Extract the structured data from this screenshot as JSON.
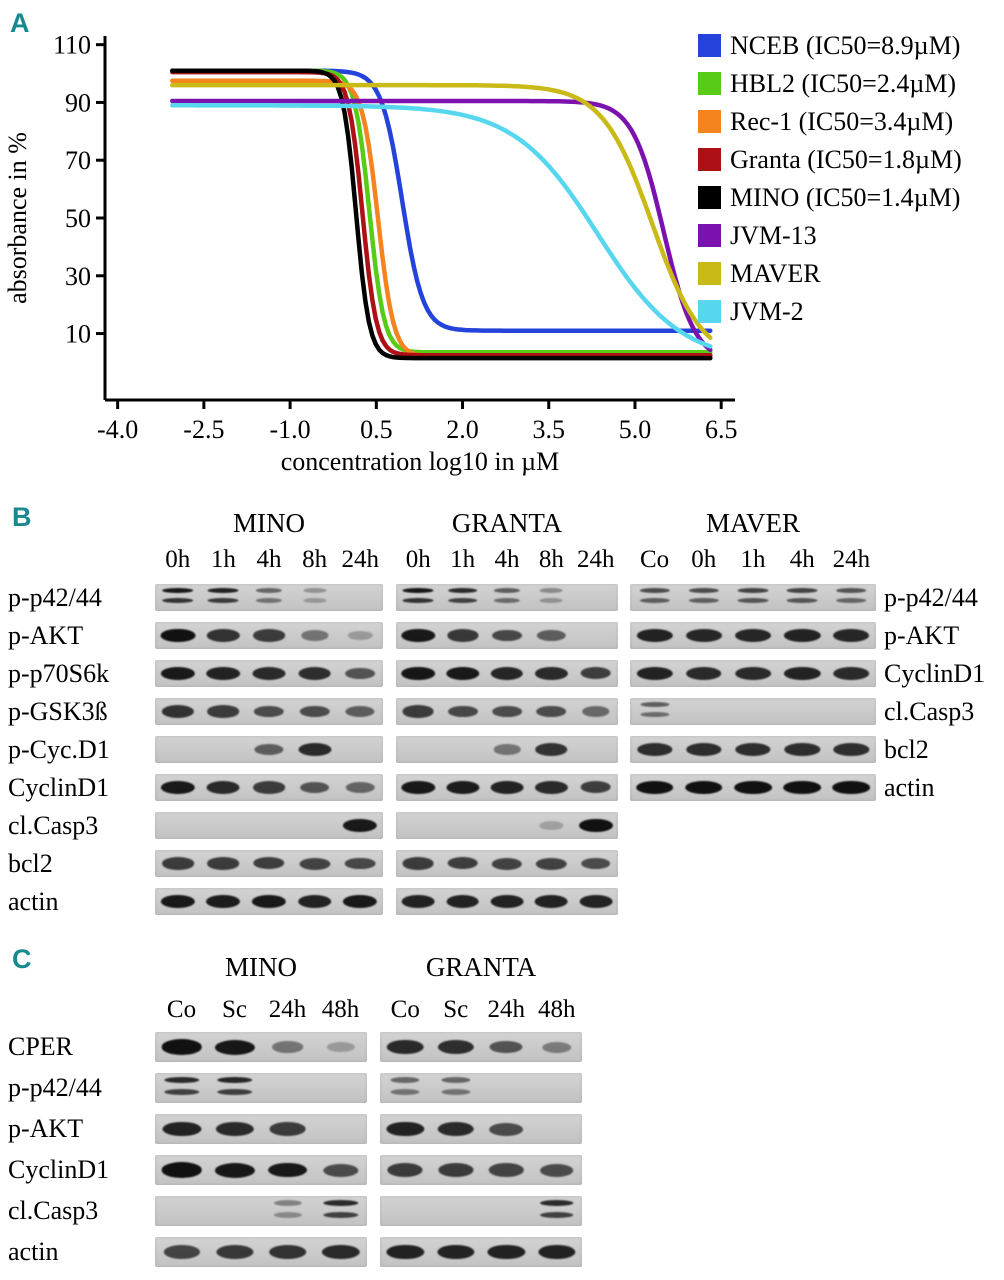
{
  "figure": {
    "panel_a_label": "A",
    "panel_b_label": "B",
    "panel_c_label": "C",
    "accent_teal": "#17898f"
  },
  "chart_data": {
    "type": "line",
    "title": "",
    "xlabel": "concentration log10 in µM",
    "ylabel": "absorbance in %",
    "xlim": [
      -4.22,
      6.74
    ],
    "ylim": [
      -13,
      113
    ],
    "x_ticks": [
      "-4.0",
      "-2.5",
      "-1.0",
      "0.5",
      "2.0",
      "3.5",
      "5.0",
      "6.5"
    ],
    "x_tick_values": [
      -4.0,
      -2.5,
      -1.0,
      0.5,
      2.0,
      3.5,
      5.0,
      6.5
    ],
    "y_ticks": [
      10,
      30,
      50,
      70,
      90,
      110
    ],
    "x_start": -3.05,
    "x_end": 6.32,
    "grid": false,
    "legend_position": "right",
    "series": [
      {
        "name": "NCEB",
        "legend": "NCEB (IC50=8.9µM)",
        "color": "#2443da",
        "top": 101,
        "bottom": 11,
        "logIC50": 0.95,
        "hill": 2.4
      },
      {
        "name": "HBL2",
        "legend": "HBL2 (IC50=2.4µM)",
        "color": "#57cb17",
        "top": 101,
        "bottom": 3.5,
        "logIC50": 0.38,
        "hill": 3.4
      },
      {
        "name": "Rec-1",
        "legend": "Rec-1 (IC50=3.4µM)",
        "color": "#f5831e",
        "top": 97.5,
        "bottom": 2,
        "logIC50": 0.53,
        "hill": 3.2
      },
      {
        "name": "Granta",
        "legend": "Granta (IC50=1.8µM)",
        "color": "#ad1015",
        "top": 100.5,
        "bottom": 2.5,
        "logIC50": 0.26,
        "hill": 3.6
      },
      {
        "name": "MINO",
        "legend": "MINO (IC50=1.4µM)",
        "color": "#000000",
        "top": 101,
        "bottom": 1.5,
        "logIC50": 0.15,
        "hill": 3.8
      },
      {
        "name": "JVM-13",
        "legend": "JVM-13",
        "color": "#7c12ad",
        "top": 90.5,
        "bottom": 0,
        "logIC50": 5.5,
        "hill": 1.6
      },
      {
        "name": "MAVER",
        "legend": "MAVER",
        "color": "#c9ba17",
        "top": 96,
        "bottom": 0,
        "logIC50": 5.3,
        "hill": 1.0
      },
      {
        "name": "JVM-2",
        "legend": "JVM-2",
        "color": "#57d7ef",
        "top": 89,
        "bottom": 0,
        "logIC50": 4.35,
        "hill": 0.6
      }
    ]
  },
  "panelB": {
    "left_labels": [
      "p-p42/44",
      "p-AKT",
      "p-p70S6k",
      "p-GSK3ß",
      "p-Cyc.D1",
      "CyclinD1",
      "cl.Casp3",
      "bcl2",
      "actin"
    ],
    "right_labels": [
      "p-p42/44",
      "p-AKT",
      "CyclinD1",
      "cl.Casp3",
      "bcl2",
      "actin"
    ],
    "groups": [
      {
        "name": "MINO",
        "lanes": [
          "0h",
          "1h",
          "4h",
          "8h",
          "24h"
        ],
        "rows": [
          {
            "double": true,
            "bands": [
              0.9,
              0.85,
              0.45,
              0.18,
              0
            ]
          },
          {
            "double": false,
            "bands": [
              0.95,
              0.75,
              0.7,
              0.35,
              0.12
            ]
          },
          {
            "double": false,
            "bands": [
              0.9,
              0.85,
              0.8,
              0.78,
              0.55
            ]
          },
          {
            "double": false,
            "bands": [
              0.75,
              0.7,
              0.6,
              0.6,
              0.5
            ]
          },
          {
            "double": false,
            "bands": [
              0,
              0,
              0.5,
              0.8,
              0
            ]
          },
          {
            "double": false,
            "bands": [
              0.9,
              0.8,
              0.7,
              0.55,
              0.45
            ]
          },
          {
            "double": false,
            "bands": [
              0,
              0,
              0,
              0,
              0.9
            ]
          },
          {
            "double": false,
            "bands": [
              0.7,
              0.7,
              0.68,
              0.65,
              0.62
            ]
          },
          {
            "double": false,
            "bands": [
              0.9,
              0.88,
              0.9,
              0.85,
              0.9
            ]
          }
        ]
      },
      {
        "name": "GRANTA",
        "lanes": [
          "0h",
          "1h",
          "4h",
          "8h",
          "24h"
        ],
        "rows": [
          {
            "double": true,
            "bands": [
              0.92,
              0.8,
              0.5,
              0.22,
              0
            ]
          },
          {
            "double": false,
            "bands": [
              0.9,
              0.72,
              0.62,
              0.5,
              0
            ]
          },
          {
            "double": false,
            "bands": [
              0.92,
              0.9,
              0.82,
              0.8,
              0.68
            ]
          },
          {
            "double": false,
            "bands": [
              0.7,
              0.62,
              0.6,
              0.6,
              0.42
            ]
          },
          {
            "double": false,
            "bands": [
              0,
              0,
              0.35,
              0.75,
              0
            ]
          },
          {
            "double": false,
            "bands": [
              0.9,
              0.88,
              0.85,
              0.8,
              0.68
            ]
          },
          {
            "double": false,
            "bands": [
              0,
              0,
              0,
              0.08,
              0.95
            ]
          },
          {
            "double": false,
            "bands": [
              0.7,
              0.68,
              0.66,
              0.66,
              0.6
            ]
          },
          {
            "double": false,
            "bands": [
              0.85,
              0.85,
              0.85,
              0.85,
              0.85
            ]
          }
        ]
      },
      {
        "name": "MAVER",
        "lanes": [
          "Co",
          "0h",
          "1h",
          "4h",
          "24h"
        ],
        "rows": [
          {
            "double": true,
            "bands": [
              0.6,
              0.6,
              0.65,
              0.65,
              0.55
            ]
          },
          {
            "double": false,
            "bands": [
              0.85,
              0.82,
              0.82,
              0.85,
              0.82
            ]
          },
          {
            "double": false,
            "bands": [
              0.85,
              0.8,
              0.8,
              0.85,
              0.8
            ]
          },
          {
            "double": true,
            "bands": [
              0.5,
              0,
              0,
              0,
              0
            ]
          },
          {
            "double": false,
            "bands": [
              0.78,
              0.78,
              0.78,
              0.78,
              0.78
            ]
          },
          {
            "double": false,
            "bands": [
              0.95,
              0.95,
              0.95,
              0.95,
              0.95
            ]
          }
        ]
      }
    ]
  },
  "panelC": {
    "left_labels": [
      "CPER",
      "p-p42/44",
      "p-AKT",
      "CyclinD1",
      "cl.Casp3",
      "actin"
    ],
    "groups": [
      {
        "name": "MINO",
        "lanes": [
          "Co",
          "Sc",
          "24h",
          "48h"
        ],
        "rows": [
          {
            "double": false,
            "bands": [
              0.95,
              0.92,
              0.35,
              0.12
            ]
          },
          {
            "double": true,
            "bands": [
              0.8,
              0.82,
              0,
              0
            ]
          },
          {
            "double": false,
            "bands": [
              0.85,
              0.8,
              0.7,
              0
            ]
          },
          {
            "double": false,
            "bands": [
              0.95,
              0.92,
              0.9,
              0.6
            ]
          },
          {
            "double": true,
            "bands": [
              0,
              0,
              0.28,
              0.8
            ]
          },
          {
            "double": false,
            "bands": [
              0.65,
              0.72,
              0.75,
              0.8
            ]
          }
        ]
      },
      {
        "name": "GRANTA",
        "lanes": [
          "Co",
          "Sc",
          "24h",
          "48h"
        ],
        "rows": [
          {
            "double": false,
            "bands": [
              0.8,
              0.78,
              0.55,
              0.3
            ]
          },
          {
            "double": true,
            "bands": [
              0.45,
              0.45,
              0,
              0
            ]
          },
          {
            "double": false,
            "bands": [
              0.85,
              0.8,
              0.6,
              0
            ]
          },
          {
            "double": false,
            "bands": [
              0.7,
              0.7,
              0.65,
              0.6
            ]
          },
          {
            "double": true,
            "bands": [
              0,
              0,
              0,
              0.8
            ]
          },
          {
            "double": false,
            "bands": [
              0.85,
              0.85,
              0.85,
              0.85
            ]
          }
        ]
      }
    ]
  }
}
